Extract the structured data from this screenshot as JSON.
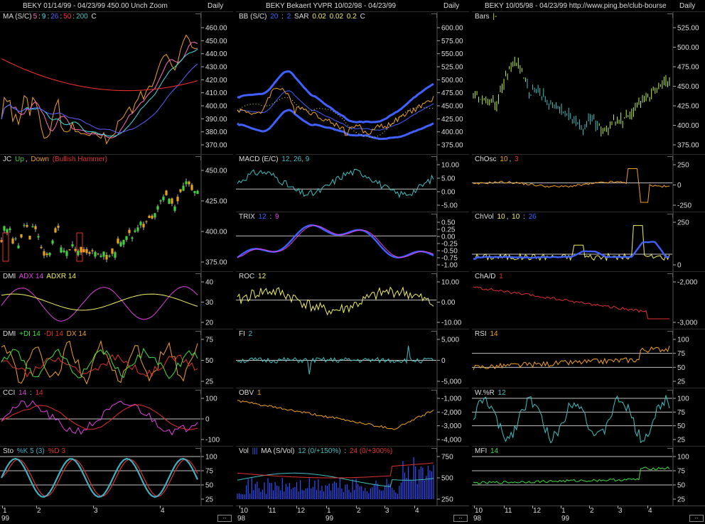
{
  "columns": [
    {
      "header": "BEKY  01/14/99 - 04/23/99    450.00   Unch    Zoom",
      "period": "Daily",
      "panes": [
        {
          "key": "ma",
          "title": [
            {
              "t": "MA (S/C)",
              "c": "#dddddd"
            },
            {
              "t": "5",
              "c": "#ff70c0"
            },
            {
              "t": ":",
              "c": "#dddddd"
            },
            {
              "t": "9",
              "c": "#40e0e0"
            },
            {
              "t": ":",
              "c": "#dddddd"
            },
            {
              "t": "26",
              "c": "#6060ff"
            },
            {
              "t": ":",
              "c": "#dddddd"
            },
            {
              "t": "50",
              "c": "#ff3030"
            },
            {
              "t": ":",
              "c": "#dddddd"
            },
            {
              "t": "200",
              "c": "#40c0c0"
            },
            {
              "t": "  C",
              "c": "#dddddd"
            }
          ],
          "ticks": [
            "460.00",
            "450.00",
            "440.00",
            "430.00",
            "420.00",
            "410.00",
            "400.00",
            "390.00",
            "380.00",
            "370.00"
          ]
        },
        {
          "key": "jc",
          "title": [
            {
              "t": "JC",
              "c": "#dddddd"
            },
            {
              "t": " Up",
              "c": "#40d040"
            },
            {
              "t": ",",
              "c": "#dddddd"
            },
            {
              "t": " Down",
              "c": "#e8a020"
            },
            {
              "t": "  (Bullish Hammer)",
              "c": "#e03030"
            }
          ],
          "ticks": [
            "450.00",
            "425.00",
            "400.00",
            "375.00"
          ]
        },
        {
          "key": "dmi1",
          "title": [
            {
              "t": "DMI",
              "c": "#dddddd"
            },
            {
              "t": "  ADX 14",
              "c": "#e040e0"
            },
            {
              "t": "  ADXR 14",
              "c": "#f0f060"
            }
          ],
          "ticks": [
            "40",
            "30",
            "20"
          ]
        },
        {
          "key": "dmi2",
          "title": [
            {
              "t": "DMI",
              "c": "#dddddd"
            },
            {
              "t": "  +DI 14",
              "c": "#40e040"
            },
            {
              "t": "  -DI 14",
              "c": "#e03030"
            },
            {
              "t": "  DX 14",
              "c": "#f0a020"
            }
          ],
          "ticks": [
            "75",
            "50",
            "25"
          ]
        },
        {
          "key": "cci",
          "title": [
            {
              "t": "CCI",
              "c": "#dddddd"
            },
            {
              "t": "  14",
              "c": "#e040e0"
            },
            {
              "t": " : ",
              "c": "#dddddd"
            },
            {
              "t": "14",
              "c": "#e03030"
            }
          ],
          "ticks": [
            "100",
            "0",
            "-100"
          ]
        },
        {
          "key": "sto",
          "title": [
            {
              "t": "Sto",
              "c": "#dddddd"
            },
            {
              "t": "  %K 5 (3)",
              "c": "#40b0c0"
            },
            {
              "t": "  %D 3",
              "c": "#e03030"
            }
          ],
          "ticks": [
            "100",
            "75",
            "50",
            "25"
          ]
        }
      ],
      "xlabels": [
        "1",
        "2",
        "3",
        "4"
      ],
      "year": "99"
    },
    {
      "header": "BEKY   Bekaert YVPR   10/02/98 - 04/23/99",
      "period": "Daily",
      "panes": [
        {
          "key": "bb",
          "title": [
            {
              "t": "BB (S/C)",
              "c": "#dddddd"
            },
            {
              "t": "  20",
              "c": "#4060ff"
            },
            {
              "t": " : ",
              "c": "#dddddd"
            },
            {
              "t": "2",
              "c": "#4060ff"
            },
            {
              "t": "   SAR",
              "c": "#dddddd"
            },
            {
              "t": "  0.02",
              "c": "#f0f060"
            },
            {
              "t": "  0.02",
              "c": "#f0f060"
            },
            {
              "t": "  0.2",
              "c": "#f0f060"
            },
            {
              "t": "    C",
              "c": "#dddddd"
            }
          ],
          "ticks": [
            "600.00",
            "575.00",
            "550.00",
            "525.00",
            "500.00",
            "475.00",
            "450.00",
            "425.00",
            "400.00",
            "375.00"
          ]
        },
        {
          "key": "macd",
          "title": [
            {
              "t": "MACD (E/C)",
              "c": "#dddddd"
            },
            {
              "t": "  12, 26, 9",
              "c": "#40c0c0"
            }
          ],
          "ticks": [
            "10.00",
            "5.00",
            "0.00",
            "-5.00"
          ]
        },
        {
          "key": "trix",
          "title": [
            {
              "t": "TRIX",
              "c": "#dddddd"
            },
            {
              "t": "  12",
              "c": "#4060ff"
            },
            {
              "t": " : ",
              "c": "#dddddd"
            },
            {
              "t": "9",
              "c": "#e040e0"
            }
          ],
          "ticks": [
            "0.50",
            "0.25",
            "0.00",
            "-0.25",
            "-0.50",
            "-0.75",
            "-1.00"
          ]
        },
        {
          "key": "roc",
          "title": [
            {
              "t": "ROC",
              "c": "#dddddd"
            },
            {
              "t": "  12",
              "c": "#f0f060"
            }
          ],
          "ticks": [
            "10.00",
            "0.00",
            "-10.00"
          ]
        },
        {
          "key": "fi",
          "title": [
            {
              "t": "FI",
              "c": "#dddddd"
            },
            {
              "t": "  2",
              "c": "#40c0c0"
            }
          ],
          "ticks": [
            "5,000",
            "0",
            "-5,000"
          ]
        },
        {
          "key": "obv",
          "title": [
            {
              "t": "OBV",
              "c": "#dddddd"
            },
            {
              "t": "  1",
              "c": "#f0a020"
            }
          ],
          "ticks": [
            "-1,000",
            "-2,000",
            "-3,000",
            "-4,000"
          ]
        },
        {
          "key": "vol",
          "title": [
            {
              "t": "Vol",
              "c": "#dddddd"
            },
            {
              "t": "  |||",
              "c": "#4060ff"
            },
            {
              "t": "   MA (S/Vol)",
              "c": "#dddddd"
            },
            {
              "t": "  12 (0/+150%)",
              "c": "#40c0c0"
            },
            {
              "t": " : ",
              "c": "#dddddd"
            },
            {
              "t": "24 (0/+300%)",
              "c": "#e03030"
            }
          ],
          "ticks": [
            "750",
            "500",
            "250"
          ]
        }
      ],
      "xlabels": [
        "10",
        "11",
        "12",
        "1",
        "2",
        "3",
        "4"
      ],
      "year_start": "98",
      "year": "99"
    },
    {
      "header": "BEKY   10/05/98 - 04/23/99    http://www.ping.be/club-bourse",
      "period": "Daily",
      "panes": [
        {
          "key": "bars",
          "title": [
            {
              "t": "Bars",
              "c": "#dddddd"
            },
            {
              "t": "  |-",
              "c": "#c0f040"
            }
          ],
          "ticks": [
            "525.00",
            "500.00",
            "475.00",
            "450.00",
            "425.00",
            "400.00",
            "375.00"
          ]
        },
        {
          "key": "chosc",
          "title": [
            {
              "t": "ChOsc",
              "c": "#dddddd"
            },
            {
              "t": "  10",
              "c": "#f0a020"
            },
            {
              "t": ", ",
              "c": "#dddddd"
            },
            {
              "t": "3",
              "c": "#e03030"
            }
          ],
          "ticks": [
            "250",
            "0",
            "-250"
          ]
        },
        {
          "key": "chvol",
          "title": [
            {
              "t": "ChVol",
              "c": "#dddddd"
            },
            {
              "t": "  10",
              "c": "#f0f060"
            },
            {
              "t": ", ",
              "c": "#dddddd"
            },
            {
              "t": "10",
              "c": "#f0f060"
            },
            {
              "t": " : ",
              "c": "#dddddd"
            },
            {
              "t": "26",
              "c": "#4060ff"
            }
          ],
          "ticks": [
            "250",
            "0"
          ]
        },
        {
          "key": "chad",
          "title": [
            {
              "t": "ChA/D",
              "c": "#dddddd"
            },
            {
              "t": "  1",
              "c": "#e03030"
            }
          ],
          "ticks": [
            "-2,000",
            "-3,000"
          ]
        },
        {
          "key": "rsi",
          "title": [
            {
              "t": "RSI",
              "c": "#dddddd"
            },
            {
              "t": "  14",
              "c": "#f0a020"
            }
          ],
          "ticks": [
            "100",
            "75",
            "50",
            "25"
          ]
        },
        {
          "key": "wr",
          "title": [
            {
              "t": "W.%R",
              "c": "#dddddd"
            },
            {
              "t": "  12",
              "c": "#40c0c0"
            }
          ],
          "ticks": [
            "100",
            "75",
            "50",
            "25"
          ]
        },
        {
          "key": "mfi",
          "title": [
            {
              "t": "MFI",
              "c": "#dddddd"
            },
            {
              "t": "  14",
              "c": "#40e040"
            }
          ],
          "ticks": [
            "100",
            "75",
            "50",
            "25"
          ]
        }
      ],
      "xlabels": [
        "10",
        "11",
        "12",
        "1",
        "2",
        "3",
        "4"
      ],
      "year_start": "98",
      "year": "99"
    }
  ],
  "colors": {
    "background": "#000000",
    "axis": "#dddddd",
    "zero_line": "#bbbbbb"
  },
  "scroll_icon": "double-arrow-icon",
  "scroll_glyph": "↔"
}
